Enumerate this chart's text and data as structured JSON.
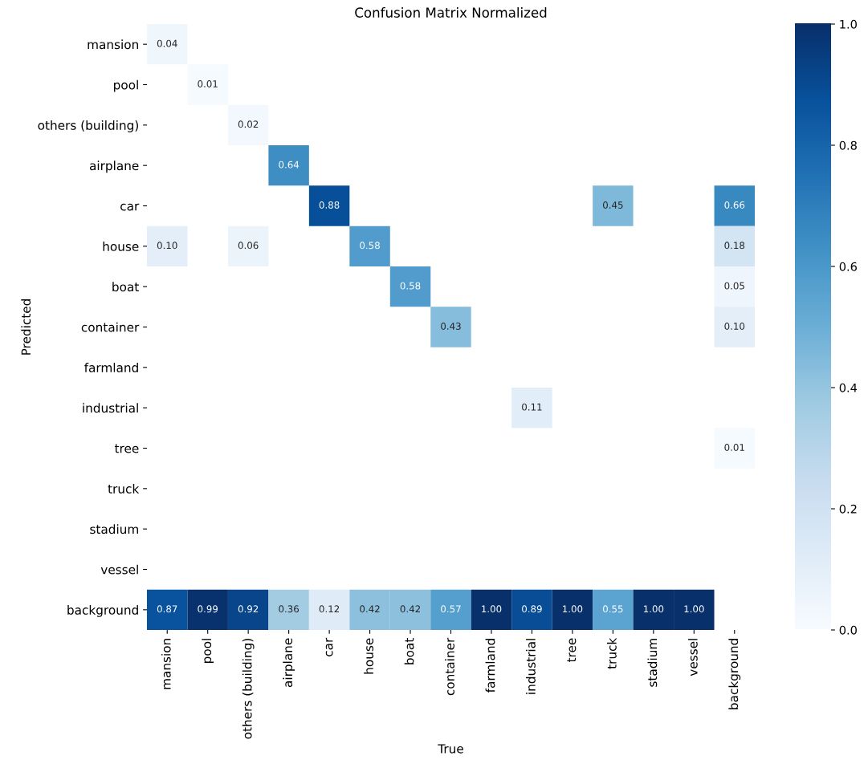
{
  "chart_data": {
    "type": "heatmap",
    "title": "Confusion Matrix Normalized",
    "xlabel": "True",
    "ylabel": "Predicted",
    "categories": [
      "mansion",
      "pool",
      "others (building)",
      "airplane",
      "car",
      "house",
      "boat",
      "container",
      "farmland",
      "industrial",
      "tree",
      "truck",
      "stadium",
      "vessel",
      "background"
    ],
    "y_categories": [
      "mansion",
      "pool",
      "others (building)",
      "airplane",
      "car",
      "house",
      "boat",
      "container",
      "farmland",
      "industrial",
      "tree",
      "truck",
      "stadium",
      "vessel",
      "background"
    ],
    "cells": [
      [
        0.04,
        null,
        null,
        null,
        null,
        null,
        null,
        null,
        null,
        null,
        null,
        null,
        null,
        null,
        null
      ],
      [
        null,
        0.01,
        null,
        null,
        null,
        null,
        null,
        null,
        null,
        null,
        null,
        null,
        null,
        null,
        null
      ],
      [
        null,
        null,
        0.02,
        null,
        null,
        null,
        null,
        null,
        null,
        null,
        null,
        null,
        null,
        null,
        null
      ],
      [
        null,
        null,
        null,
        0.64,
        null,
        null,
        null,
        null,
        null,
        null,
        null,
        null,
        null,
        null,
        null
      ],
      [
        null,
        null,
        null,
        null,
        0.88,
        null,
        null,
        null,
        null,
        null,
        null,
        0.45,
        null,
        null,
        0.66
      ],
      [
        0.1,
        null,
        0.06,
        null,
        null,
        0.58,
        null,
        null,
        null,
        null,
        null,
        null,
        null,
        null,
        0.18
      ],
      [
        null,
        null,
        null,
        null,
        null,
        null,
        0.58,
        null,
        null,
        null,
        null,
        null,
        null,
        null,
        0.05
      ],
      [
        null,
        null,
        null,
        null,
        null,
        null,
        null,
        0.43,
        null,
        null,
        null,
        null,
        null,
        null,
        0.1
      ],
      [
        null,
        null,
        null,
        null,
        null,
        null,
        null,
        null,
        null,
        null,
        null,
        null,
        null,
        null,
        null
      ],
      [
        null,
        null,
        null,
        null,
        null,
        null,
        null,
        null,
        null,
        0.11,
        null,
        null,
        null,
        null,
        null
      ],
      [
        null,
        null,
        null,
        null,
        null,
        null,
        null,
        null,
        null,
        null,
        null,
        null,
        null,
        null,
        0.01
      ],
      [
        null,
        null,
        null,
        null,
        null,
        null,
        null,
        null,
        null,
        null,
        null,
        null,
        null,
        null,
        null
      ],
      [
        null,
        null,
        null,
        null,
        null,
        null,
        null,
        null,
        null,
        null,
        null,
        null,
        null,
        null,
        null
      ],
      [
        null,
        null,
        null,
        null,
        null,
        null,
        null,
        null,
        null,
        null,
        null,
        null,
        null,
        null,
        null
      ],
      [
        0.87,
        0.99,
        0.92,
        0.36,
        0.12,
        0.42,
        0.42,
        0.57,
        1.0,
        0.89,
        1.0,
        0.55,
        1.0,
        1.0,
        null
      ]
    ],
    "cell_labels": [
      [
        "0.04",
        null,
        null,
        null,
        null,
        null,
        null,
        null,
        null,
        null,
        null,
        null,
        null,
        null,
        null
      ],
      [
        null,
        "0.01",
        null,
        null,
        null,
        null,
        null,
        null,
        null,
        null,
        null,
        null,
        null,
        null,
        null
      ],
      [
        null,
        null,
        "0.02",
        null,
        null,
        null,
        null,
        null,
        null,
        null,
        null,
        null,
        null,
        null,
        null
      ],
      [
        null,
        null,
        null,
        "0.64",
        null,
        null,
        null,
        null,
        null,
        null,
        null,
        null,
        null,
        null,
        null
      ],
      [
        null,
        null,
        null,
        null,
        "0.88",
        null,
        null,
        null,
        null,
        null,
        null,
        "0.45",
        null,
        null,
        "0.66"
      ],
      [
        "0.10",
        null,
        "0.06",
        null,
        null,
        "0.58",
        null,
        null,
        null,
        null,
        null,
        null,
        null,
        null,
        "0.18"
      ],
      [
        null,
        null,
        null,
        null,
        null,
        null,
        "0.58",
        null,
        null,
        null,
        null,
        null,
        null,
        null,
        "0.05"
      ],
      [
        null,
        null,
        null,
        null,
        null,
        null,
        null,
        "0.43",
        null,
        null,
        null,
        null,
        null,
        null,
        "0.10"
      ],
      [
        null,
        null,
        null,
        null,
        null,
        null,
        null,
        null,
        null,
        null,
        null,
        null,
        null,
        null,
        null
      ],
      [
        null,
        null,
        null,
        null,
        null,
        null,
        null,
        null,
        null,
        "0.11",
        null,
        null,
        null,
        null,
        null
      ],
      [
        null,
        null,
        null,
        null,
        null,
        null,
        null,
        null,
        null,
        null,
        null,
        null,
        null,
        null,
        "0.01"
      ],
      [
        null,
        null,
        null,
        null,
        null,
        null,
        null,
        null,
        null,
        null,
        null,
        null,
        null,
        null,
        null
      ],
      [
        null,
        null,
        null,
        null,
        null,
        null,
        null,
        null,
        null,
        null,
        null,
        null,
        null,
        null,
        null
      ],
      [
        null,
        null,
        null,
        null,
        null,
        null,
        null,
        null,
        null,
        null,
        null,
        null,
        null,
        null,
        null
      ],
      [
        "0.87",
        "0.99",
        "0.92",
        "0.36",
        "0.12",
        "0.42",
        "0.42",
        "0.57",
        "1.00",
        "0.89",
        "1.00",
        "0.55",
        "1.00",
        "1.00",
        null
      ]
    ],
    "clim": [
      0,
      1
    ],
    "cticks": [
      {
        "value": 0,
        "label": "0.0"
      },
      {
        "value": 0.2,
        "label": "0.2"
      },
      {
        "value": 0.4,
        "label": "0.4"
      },
      {
        "value": 0.6,
        "label": "0.6"
      },
      {
        "value": 0.8,
        "label": "0.8"
      },
      {
        "value": 1,
        "label": "1.0"
      }
    ]
  }
}
